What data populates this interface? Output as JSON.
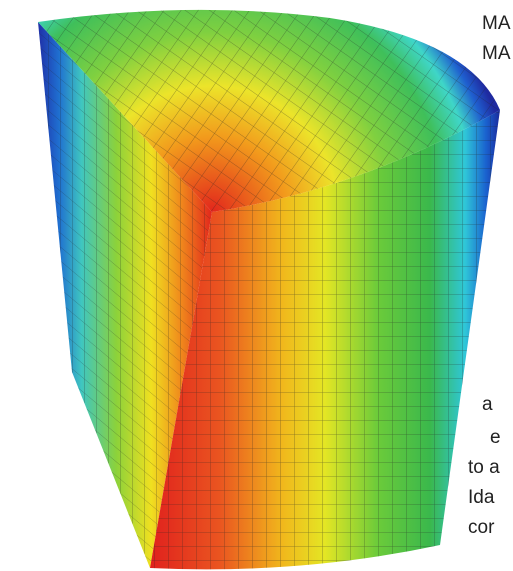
{
  "text_fragments": [
    "MA",
    "MA",
    "a",
    "e",
    "to a",
    "Ida",
    "cor"
  ]
}
